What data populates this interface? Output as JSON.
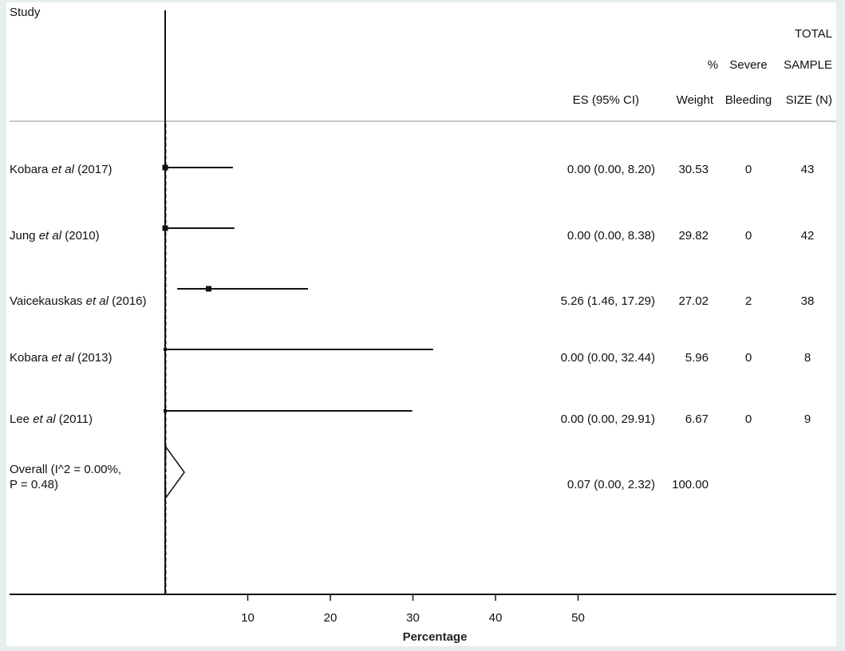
{
  "chart_data": {
    "type": "forest",
    "xlabel": "Percentage",
    "xticks": [
      10,
      20,
      30,
      40,
      50
    ],
    "x_null_line": 0,
    "headers": {
      "study": "Study",
      "es": "ES (95% CI)",
      "weight_l1": "%",
      "weight_l2": "Weight",
      "bleed_l1": "Severe",
      "bleed_l2": "Bleeding",
      "n_l1": "TOTAL",
      "n_l2": "SAMPLE",
      "n_l3": "SIZE (N)"
    },
    "studies": [
      {
        "name_pre": "Kobara ",
        "name_it": "et al",
        "name_post": " (2017)",
        "es": 0.0,
        "lo": 0.0,
        "hi": 8.2,
        "es_text": "0.00 (0.00, 8.20)",
        "weight": "30.53",
        "bleeding": "0",
        "n": "43"
      },
      {
        "name_pre": "Jung ",
        "name_it": "et al",
        "name_post": " (2010)",
        "es": 0.0,
        "lo": 0.0,
        "hi": 8.38,
        "es_text": "0.00 (0.00, 8.38)",
        "weight": "29.82",
        "bleeding": "0",
        "n": "42"
      },
      {
        "name_pre": "Vaicekauskas ",
        "name_it": "et al",
        "name_post": " (2016)",
        "es": 5.26,
        "lo": 1.46,
        "hi": 17.29,
        "es_text": "5.26 (1.46, 17.29)",
        "weight": "27.02",
        "bleeding": "2",
        "n": "38"
      },
      {
        "name_pre": "Kobara ",
        "name_it": "et al",
        "name_post": " (2013)",
        "es": 0.0,
        "lo": 0.0,
        "hi": 32.44,
        "es_text": "0.00 (0.00, 32.44)",
        "weight": "5.96",
        "bleeding": "0",
        "n": "8"
      },
      {
        "name_pre": "Lee ",
        "name_it": "et al",
        "name_post": " (2011)",
        "es": 0.0,
        "lo": 0.0,
        "hi": 29.91,
        "es_text": "0.00 (0.00, 29.91)",
        "weight": "6.67",
        "bleeding": "0",
        "n": "9"
      }
    ],
    "overall": {
      "label_l1": "Overall (I^2 = 0.00%,",
      "label_l2": "P = 0.48)",
      "es": 0.07,
      "lo": 0.0,
      "hi": 2.32,
      "es_text": "0.07 (0.00, 2.32)",
      "weight": "100.00"
    }
  }
}
